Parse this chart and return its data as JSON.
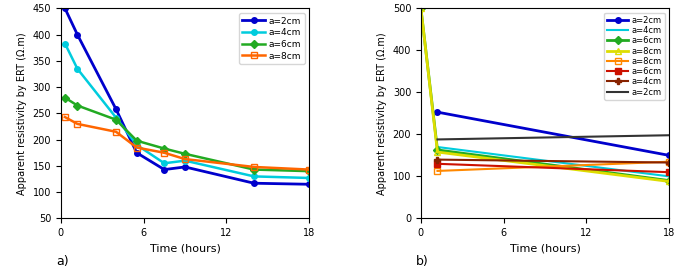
{
  "panel_a": {
    "ylabel": "Apparent resistivity by ERT (Ω.m)",
    "xlabel": "Time (hours)",
    "ylim": [
      50,
      450
    ],
    "xlim": [
      0,
      18
    ],
    "xticks": [
      0,
      6,
      12,
      18
    ],
    "yticks": [
      50,
      100,
      150,
      200,
      250,
      300,
      350,
      400,
      450
    ],
    "series": [
      {
        "label": "a=2cm",
        "color": "#0000CC",
        "marker": "o",
        "markersize": 4,
        "fillstyle": "full",
        "linewidth": 2.0,
        "x": [
          0.3,
          1.2,
          4.0,
          5.5,
          7.5,
          9.0,
          14.0,
          18.0
        ],
        "y": [
          450,
          400,
          258,
          175,
          143,
          148,
          117,
          115
        ]
      },
      {
        "label": "a=4cm",
        "color": "#00CCDD",
        "marker": "o",
        "markersize": 4,
        "fillstyle": "full",
        "linewidth": 1.8,
        "x": [
          0.3,
          1.2,
          4.0,
          5.5,
          7.5,
          9.0,
          14.0,
          18.0
        ],
        "y": [
          383,
          335,
          242,
          190,
          155,
          160,
          130,
          127
        ]
      },
      {
        "label": "a=6cm",
        "color": "#22AA22",
        "marker": "D",
        "markersize": 4,
        "fillstyle": "full",
        "linewidth": 1.8,
        "x": [
          0.3,
          1.2,
          4.0,
          5.5,
          7.5,
          9.0,
          14.0,
          18.0
        ],
        "y": [
          280,
          265,
          238,
          198,
          183,
          173,
          143,
          140
        ]
      },
      {
        "label": "a=8cm",
        "color": "#FF6600",
        "marker": "s",
        "markersize": 4,
        "fillstyle": "none",
        "linewidth": 1.8,
        "x": [
          0.3,
          1.2,
          4.0,
          5.5,
          7.5,
          9.0,
          14.0,
          18.0
        ],
        "y": [
          243,
          230,
          215,
          185,
          175,
          163,
          148,
          143
        ]
      }
    ]
  },
  "panel_b": {
    "ylabel": "Apparent resistivity by ERT (Ω.m)",
    "xlabel": "Time (hours)",
    "ylim": [
      0,
      500
    ],
    "xlim": [
      0,
      18
    ],
    "xticks": [
      0,
      6,
      12,
      18
    ],
    "yticks": [
      0,
      50,
      100,
      150,
      200,
      250,
      300,
      350,
      400,
      450,
      500
    ],
    "series": [
      {
        "label": "a=2cm",
        "color": "#0000CC",
        "marker": "o",
        "markersize": 4,
        "fillstyle": "full",
        "linewidth": 2.0,
        "x": [
          1.2,
          18.0
        ],
        "y": [
          253,
          150
        ]
      },
      {
        "label": "a=4cm",
        "color": "#00CCDD",
        "marker": "none",
        "markersize": 4,
        "fillstyle": "full",
        "linewidth": 1.5,
        "x": [
          1.2,
          18.0
        ],
        "y": [
          170,
          100
        ]
      },
      {
        "label": "a=6cm",
        "color": "#22AA22",
        "marker": "D",
        "markersize": 4,
        "fillstyle": "full",
        "linewidth": 2.0,
        "x": [
          0.0,
          1.2,
          18.0
        ],
        "y": [
          500,
          163,
          90
        ]
      },
      {
        "label": "a=8cm",
        "color": "#DDDD00",
        "marker": "^",
        "markersize": 5,
        "fillstyle": "none",
        "linewidth": 2.0,
        "x": [
          0.0,
          1.2,
          18.0
        ],
        "y": [
          500,
          158,
          88
        ]
      },
      {
        "label": "a=8cm",
        "color": "#FF8800",
        "marker": "s",
        "markersize": 4,
        "fillstyle": "none",
        "linewidth": 1.5,
        "x": [
          1.2,
          18.0
        ],
        "y": [
          113,
          135
        ]
      },
      {
        "label": "a=6cm",
        "color": "#CC1100",
        "marker": "s",
        "markersize": 4,
        "fillstyle": "full",
        "linewidth": 1.5,
        "x": [
          1.2,
          18.0
        ],
        "y": [
          130,
          110
        ]
      },
      {
        "label": "a=4cm",
        "color": "#882200",
        "marker": "P",
        "markersize": 5,
        "fillstyle": "full",
        "linewidth": 1.5,
        "x": [
          1.2,
          18.0
        ],
        "y": [
          140,
          133
        ]
      },
      {
        "label": "a=2cm",
        "color": "#333333",
        "marker": "none",
        "markersize": 4,
        "fillstyle": "full",
        "linewidth": 1.5,
        "x": [
          1.2,
          18.0
        ],
        "y": [
          188,
          198
        ]
      }
    ]
  }
}
